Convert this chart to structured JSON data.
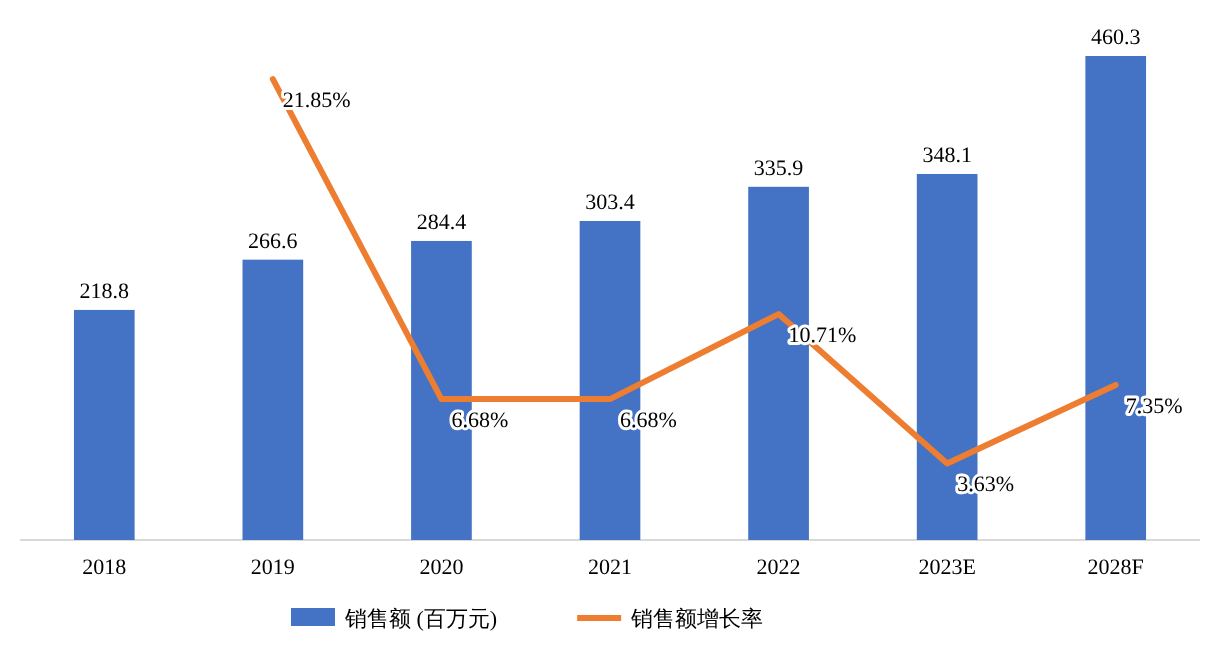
{
  "chart_data": {
    "type": "bar",
    "categories": [
      "2018",
      "2019",
      "2020",
      "2021",
      "2022",
      "2023E",
      "2028F"
    ],
    "series": [
      {
        "name": "销售额 (百万元)",
        "color": "#4472c4",
        "values": [
          218.8,
          266.6,
          284.4,
          303.4,
          335.9,
          348.1,
          460.3
        ]
      },
      {
        "name": "销售额增长率",
        "type": "line",
        "axis": "y2",
        "color": "#ed7d31",
        "values": [
          null,
          21.85,
          6.68,
          6.68,
          10.71,
          3.63,
          7.35
        ],
        "value_labels": [
          null,
          "21.85%",
          "6.68%",
          "6.68%",
          "10.71%",
          "3.63%",
          "7.35%"
        ]
      }
    ],
    "data_labels": true,
    "legend": "bottom"
  }
}
